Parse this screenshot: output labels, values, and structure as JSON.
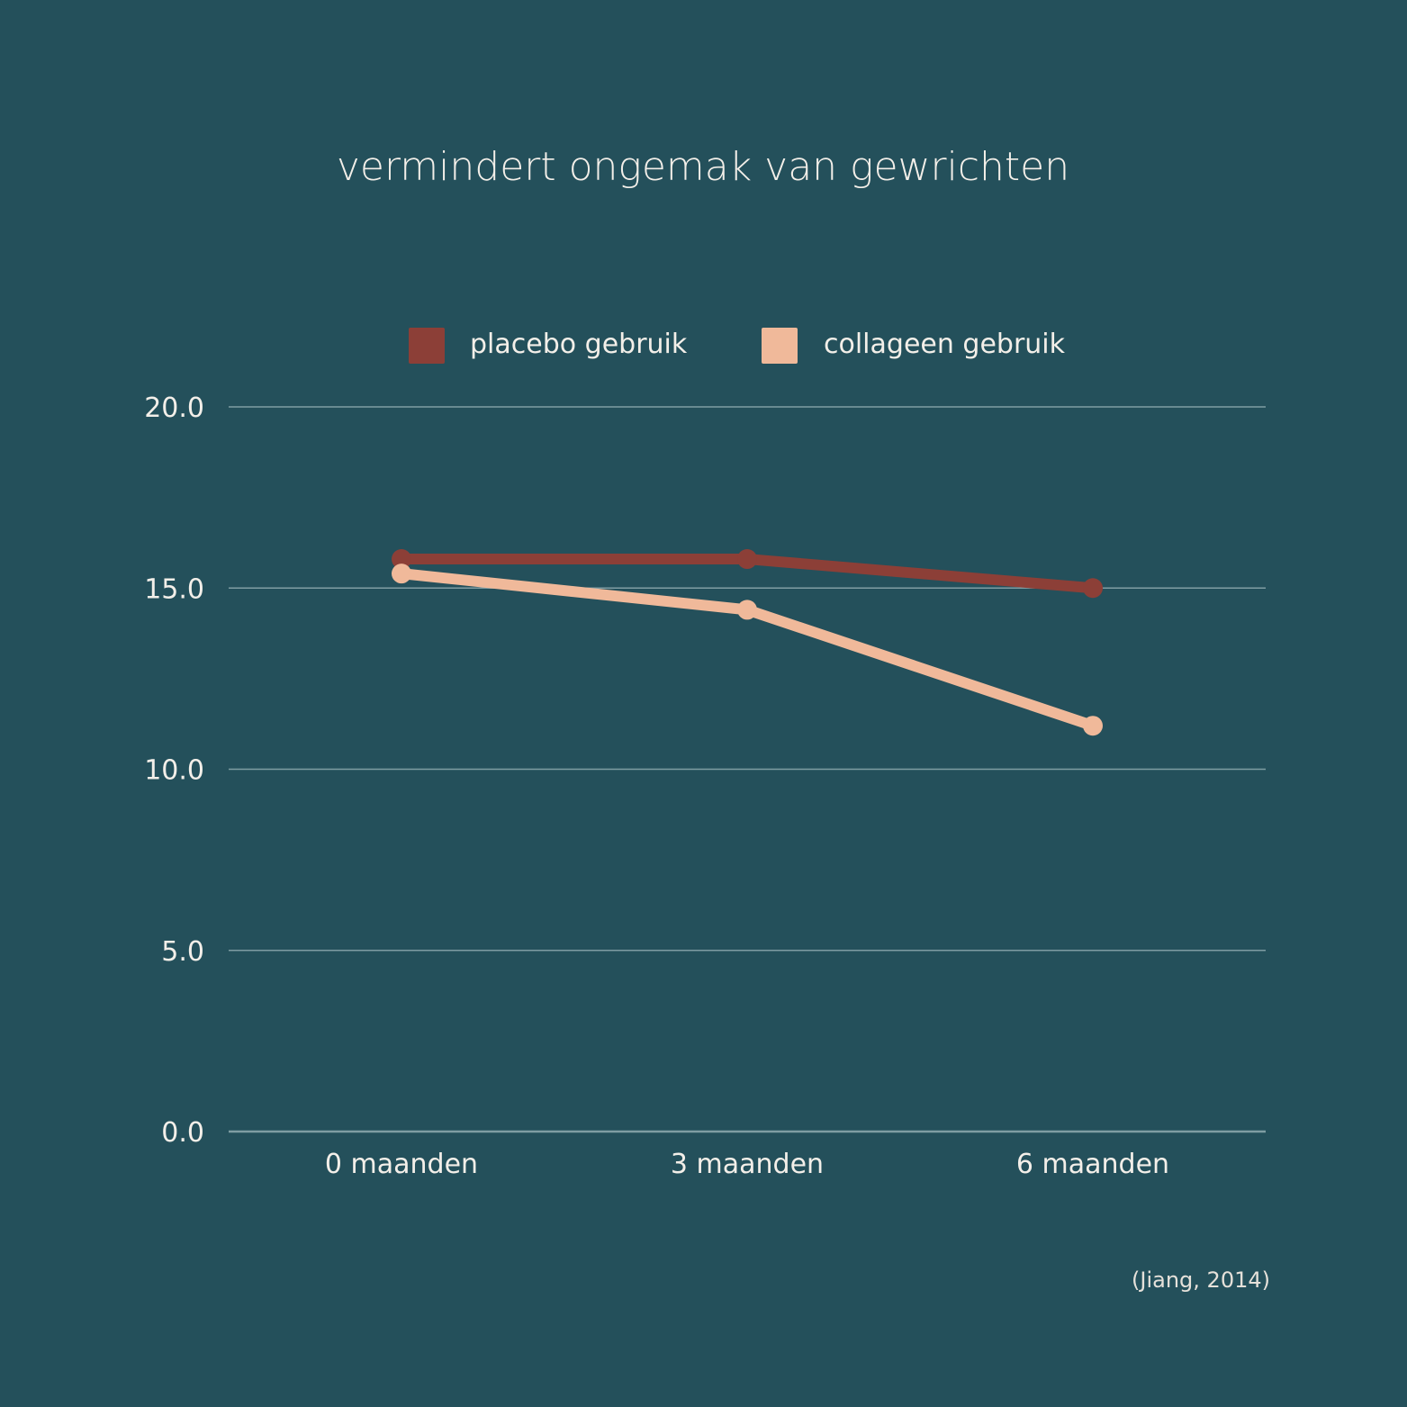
{
  "chart_data": {
    "type": "line",
    "title": "vermindert ongemak van gewrichten",
    "xlabel": "",
    "ylabel": "",
    "categories": [
      "0 maanden",
      "3 maanden",
      "6 maanden"
    ],
    "y_ticks": [
      "0.0",
      "5.0",
      "10.0",
      "15.0",
      "20.0"
    ],
    "ylim": [
      0,
      20
    ],
    "grid": true,
    "legend_position": "top",
    "series": [
      {
        "name": "placebo gebruik",
        "color": "#8c3f37",
        "values": [
          15.8,
          15.8,
          15.0
        ]
      },
      {
        "name": "collageen gebruik",
        "color": "#f0b99a",
        "values": [
          15.4,
          14.4,
          11.2
        ]
      }
    ],
    "source": "(Jiang, 2014)"
  },
  "colors": {
    "background": "#24505b",
    "gridline": "#7f9da3",
    "text": "#f3efe9"
  }
}
